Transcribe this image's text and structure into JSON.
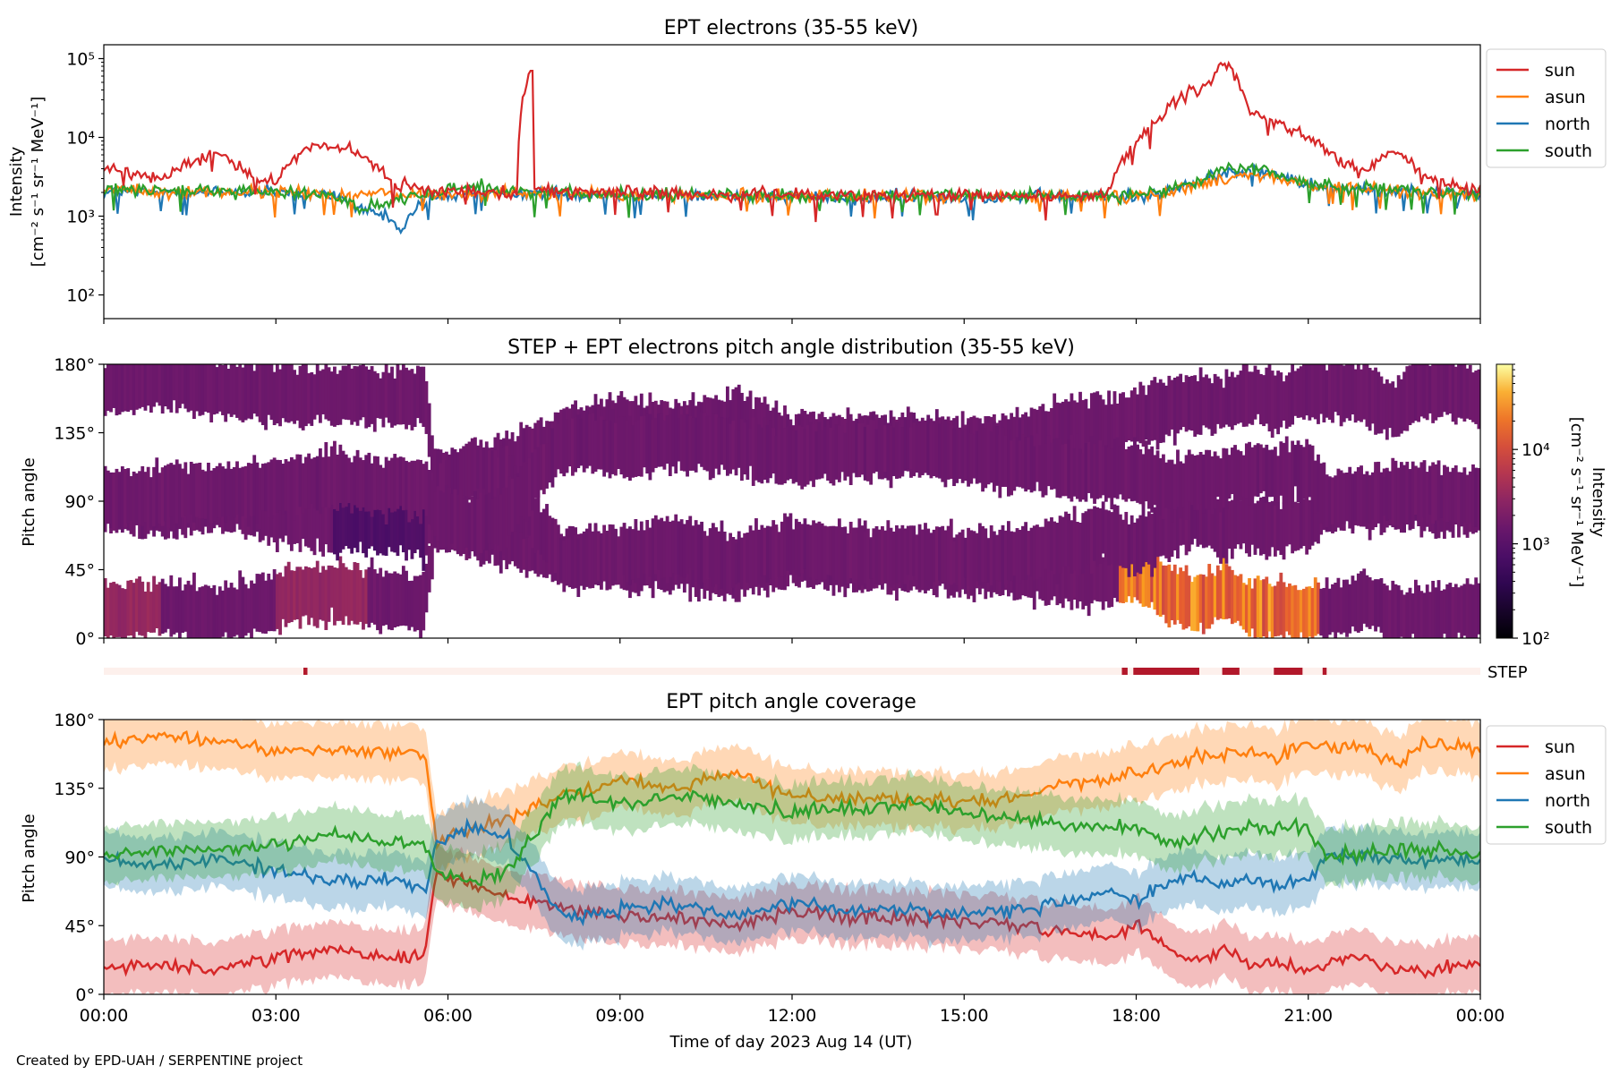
{
  "footer": {
    "credit": "Created by EPD-UAH / SERPENTINE project"
  },
  "colors": {
    "sun": "#d62728",
    "asun": "#ff7f0e",
    "north": "#1f77b4",
    "south": "#2ca02c",
    "step_bar_bg": "#fdf0ec",
    "step_bar_on": "#b2182b"
  },
  "chart_data": [
    {
      "id": "intensity",
      "type": "line",
      "title": "EPT electrons (35-55 keV)",
      "ylabel_line1": "Intensity",
      "ylabel_line2": "[cm⁻² s⁻¹ sr⁻¹ MeV⁻¹]",
      "yscale": "log",
      "ylim": [
        50,
        150000
      ],
      "yticks": [
        "10²",
        "10³",
        "10⁴",
        "10⁵"
      ],
      "yticks_values": [
        100,
        1000,
        10000,
        100000
      ],
      "xlim_hours": [
        0,
        24
      ],
      "legend": [
        "sun",
        "asun",
        "north",
        "south"
      ],
      "legend_position": "right",
      "series": [
        {
          "name": "sun",
          "x": [
            0,
            0.5,
            1,
            1.5,
            2,
            2.5,
            3,
            3.5,
            4,
            4.5,
            5,
            5.5,
            6,
            6.5,
            7,
            7.2,
            7.45,
            7.5,
            8,
            9,
            10,
            11,
            12,
            13,
            14,
            15,
            16,
            17,
            17.5,
            18,
            18.5,
            19,
            19.3,
            19.5,
            20,
            20.5,
            21,
            21.5,
            22,
            22.5,
            23,
            23.5,
            24
          ],
          "y": [
            4000,
            3500,
            3000,
            5000,
            6500,
            3500,
            2500,
            7000,
            8000,
            6000,
            2500,
            2200,
            2000,
            2200,
            2000,
            2100,
            70000,
            2200,
            2000,
            2000,
            1900,
            1900,
            1900,
            1800,
            1800,
            1800,
            1800,
            1800,
            1900,
            8000,
            20000,
            40000,
            45000,
            90000,
            20000,
            15000,
            10000,
            5000,
            3500,
            7000,
            3000,
            2500,
            2000
          ]
        },
        {
          "name": "asun",
          "x": [
            0,
            1,
            2,
            3,
            4,
            5,
            6,
            7,
            8,
            9,
            10,
            11,
            12,
            13,
            14,
            15,
            16,
            17,
            18,
            18.5,
            19,
            19.5,
            20,
            20.5,
            21,
            22,
            23,
            24
          ],
          "y": [
            2200,
            2000,
            2000,
            2000,
            1900,
            1900,
            1900,
            2000,
            1900,
            1900,
            1800,
            1800,
            1800,
            1800,
            1800,
            1700,
            1800,
            1800,
            1800,
            2000,
            2400,
            3000,
            3500,
            3000,
            2500,
            2200,
            2000,
            1800
          ]
        },
        {
          "name": "north",
          "x": [
            0,
            1,
            2,
            3,
            4,
            4.5,
            5,
            5.2,
            5.5,
            6,
            6.5,
            7,
            8,
            9,
            10,
            11,
            12,
            13,
            14,
            15,
            16,
            17,
            18,
            18.5,
            19,
            19.5,
            20,
            20.5,
            21,
            22,
            23,
            24
          ],
          "y": [
            2000,
            2000,
            2000,
            2000,
            1800,
            1200,
            900,
            600,
            1500,
            1800,
            2000,
            2000,
            1900,
            1900,
            1800,
            1800,
            1800,
            1700,
            1800,
            1700,
            1800,
            1800,
            1800,
            2000,
            2500,
            3500,
            4000,
            3200,
            2500,
            2200,
            2000,
            1900
          ]
        },
        {
          "name": "south",
          "x": [
            0,
            1,
            2,
            3,
            4,
            4.5,
            5,
            5.5,
            6,
            6.5,
            7,
            8,
            9,
            10,
            11,
            12,
            13,
            14,
            15,
            16,
            17,
            18,
            18.5,
            19,
            19.5,
            20,
            20.5,
            21,
            22,
            23,
            24
          ],
          "y": [
            2100,
            2100,
            2100,
            2000,
            1900,
            1200,
            1500,
            1800,
            2200,
            2500,
            2100,
            2000,
            1900,
            1900,
            1900,
            1800,
            1800,
            1800,
            1800,
            1800,
            1800,
            1900,
            2100,
            2600,
            3800,
            4200,
            3300,
            2600,
            2200,
            2000,
            1900
          ]
        }
      ]
    },
    {
      "id": "pad",
      "type": "heatmap",
      "title": "STEP + EPT electrons pitch angle distribution (35-55 keV)",
      "ylabel": "Pitch angle",
      "ylim": [
        0,
        180
      ],
      "yticks": [
        "0°",
        "45°",
        "90°",
        "135°",
        "180°"
      ],
      "xlim_hours": [
        0,
        24
      ],
      "colorbar": {
        "label_line1": "Intensity",
        "label_line2": "[cm⁻² s⁻¹ sr⁻¹ MeV⁻¹]",
        "scale": "log",
        "range": [
          100,
          80000
        ],
        "ticks": [
          "10²",
          "10³",
          "10⁴"
        ],
        "ticks_values": [
          100,
          1000,
          10000
        ],
        "cmap": "inferno"
      },
      "notes": "Four bands tracking the sun/asun/north/south coverage; bright (~10^4-5·10^4) near 0-45° between 17:45 and 21:15"
    },
    {
      "id": "step",
      "type": "bar",
      "label": "STEP",
      "xlim_hours": [
        0,
        24
      ],
      "segments_hours": [
        [
          3.48,
          3.55
        ],
        [
          17.75,
          17.85
        ],
        [
          17.95,
          19.1
        ],
        [
          19.5,
          19.8
        ],
        [
          20.4,
          20.9
        ],
        [
          21.25,
          21.32
        ]
      ]
    },
    {
      "id": "coverage",
      "type": "line",
      "title": "EPT pitch angle coverage",
      "ylabel": "Pitch angle",
      "xlabel": "Time of day 2023 Aug 14 (UT)",
      "ylim": [
        0,
        180
      ],
      "yticks": [
        "0°",
        "45°",
        "90°",
        "135°",
        "180°"
      ],
      "xlim_hours": [
        0,
        24
      ],
      "xticks": [
        "00:00",
        "03:00",
        "06:00",
        "09:00",
        "12:00",
        "15:00",
        "18:00",
        "21:00",
        "00:00"
      ],
      "legend": [
        "sun",
        "asun",
        "north",
        "south"
      ],
      "legend_position": "right",
      "band_halfwidth_deg": 18,
      "series": [
        {
          "name": "sun",
          "x": [
            0,
            1,
            2,
            3,
            4,
            5,
            5.6,
            5.8,
            6.5,
            7,
            8,
            9,
            10,
            11,
            12,
            13,
            14,
            15,
            16,
            17,
            17.5,
            18,
            18.5,
            19,
            19.5,
            20,
            20.5,
            21,
            22,
            22.5,
            23,
            24
          ],
          "y": [
            18,
            20,
            16,
            25,
            30,
            25,
            25,
            80,
            70,
            65,
            55,
            50,
            50,
            45,
            55,
            50,
            50,
            48,
            45,
            40,
            38,
            45,
            30,
            22,
            30,
            20,
            20,
            15,
            25,
            15,
            15,
            20
          ]
        },
        {
          "name": "asun",
          "x": [
            0,
            1,
            2,
            3,
            4,
            5,
            5.6,
            5.8,
            6.5,
            7,
            8,
            9,
            10,
            11,
            12,
            13,
            14,
            15,
            16,
            17,
            17.5,
            18,
            18.5,
            19,
            19.5,
            20,
            20.5,
            21,
            22,
            22.5,
            23,
            24
          ],
          "y": [
            165,
            170,
            165,
            160,
            160,
            158,
            158,
            100,
            110,
            115,
            130,
            140,
            135,
            145,
            130,
            128,
            128,
            125,
            130,
            140,
            140,
            145,
            150,
            155,
            155,
            160,
            155,
            165,
            160,
            150,
            165,
            160
          ]
        },
        {
          "name": "north",
          "x": [
            0,
            1,
            2,
            3,
            4,
            5,
            5.6,
            5.8,
            6.5,
            7,
            8,
            9,
            10,
            11,
            12,
            13,
            14,
            15,
            16,
            17,
            17.5,
            18,
            18.5,
            19,
            19.5,
            20,
            20.5,
            21,
            21.3,
            22,
            23,
            24
          ],
          "y": [
            90,
            85,
            90,
            80,
            75,
            75,
            70,
            100,
            110,
            105,
            50,
            55,
            60,
            50,
            60,
            55,
            55,
            52,
            55,
            62,
            68,
            60,
            72,
            78,
            72,
            75,
            72,
            75,
            90,
            90,
            88,
            88
          ]
        },
        {
          "name": "south",
          "x": [
            0,
            1,
            2,
            3,
            4,
            5,
            5.6,
            5.8,
            6.5,
            7,
            8,
            9,
            10,
            11,
            12,
            13,
            14,
            15,
            16,
            17,
            17.5,
            18,
            18.5,
            19,
            19.5,
            20,
            20.5,
            21,
            21.3,
            22,
            23,
            24
          ],
          "y": [
            90,
            95,
            95,
            98,
            105,
            100,
            100,
            80,
            75,
            80,
            130,
            125,
            130,
            125,
            120,
            122,
            125,
            120,
            115,
            110,
            110,
            110,
            100,
            102,
            105,
            110,
            108,
            110,
            90,
            92,
            95,
            92
          ]
        }
      ]
    }
  ]
}
